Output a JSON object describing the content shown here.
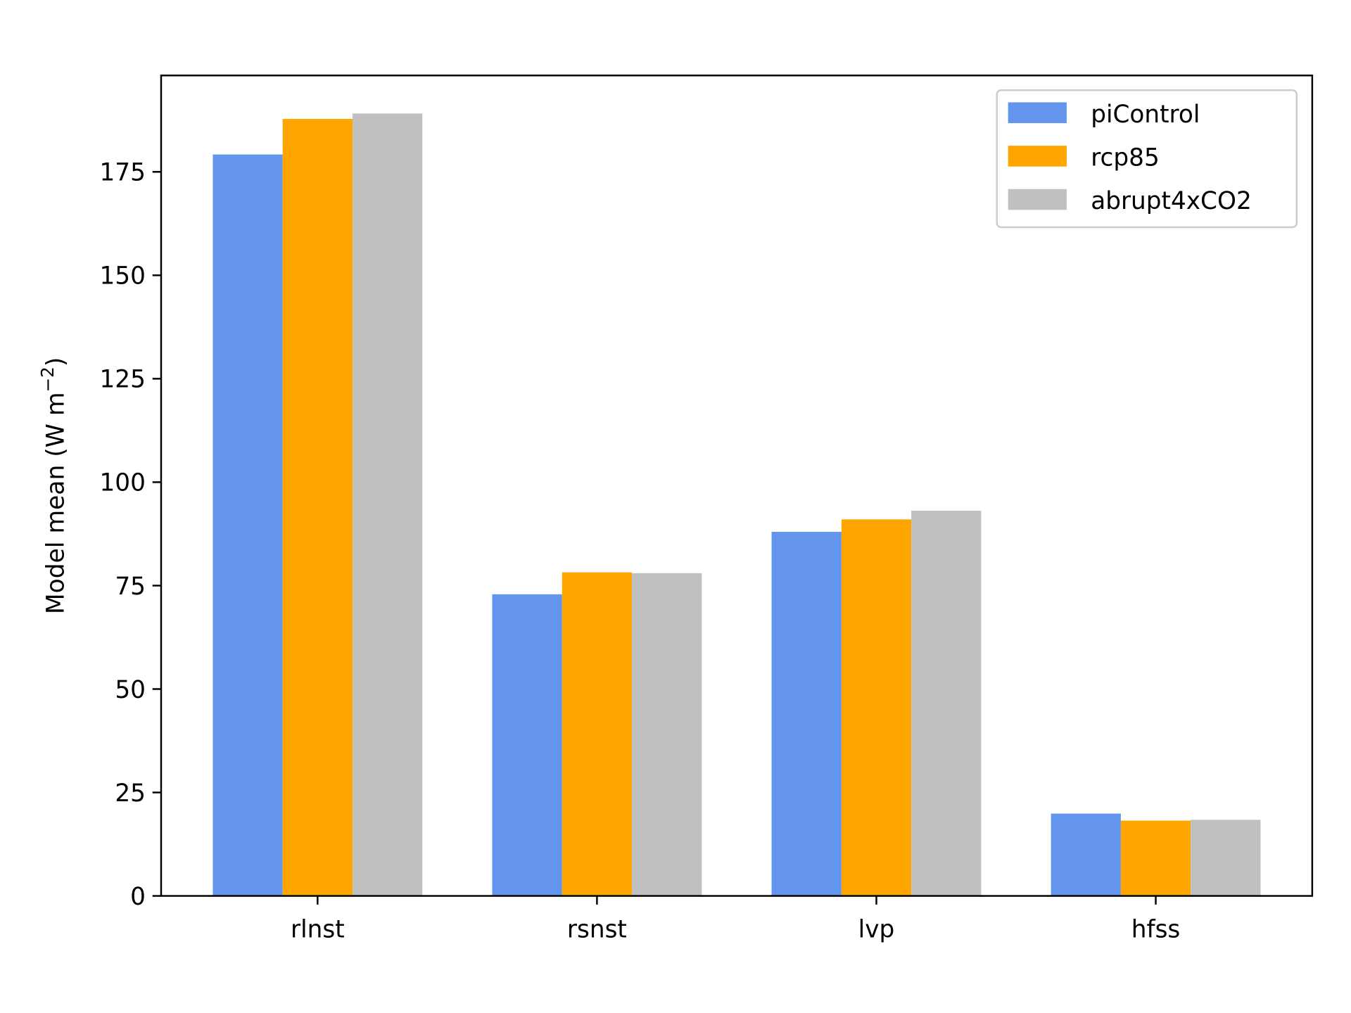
{
  "chart_data": {
    "type": "bar",
    "title": "",
    "xlabel": "",
    "ylabel": "Model mean (W m",
    "ylabel_superscript": "−2",
    "ylabel_close": ")",
    "categories": [
      "rlnst",
      "rsnst",
      "lvp",
      "hfss"
    ],
    "series": [
      {
        "name": "piControl",
        "color": "#6495ED",
        "values": [
          179.2,
          72.9,
          88.0,
          19.9
        ]
      },
      {
        "name": "rcp85",
        "color": "#FFA500",
        "values": [
          187.8,
          78.2,
          91.0,
          18.2
        ]
      },
      {
        "name": "abrupt4xCO2",
        "color": "#C0C0C0",
        "values": [
          189.1,
          78.0,
          93.1,
          18.4
        ]
      }
    ],
    "yticks": [
      0,
      25,
      50,
      75,
      100,
      125,
      150,
      175
    ],
    "ylim": [
      0,
      198.3
    ],
    "grid": false,
    "legend_placement": "top-right"
  }
}
